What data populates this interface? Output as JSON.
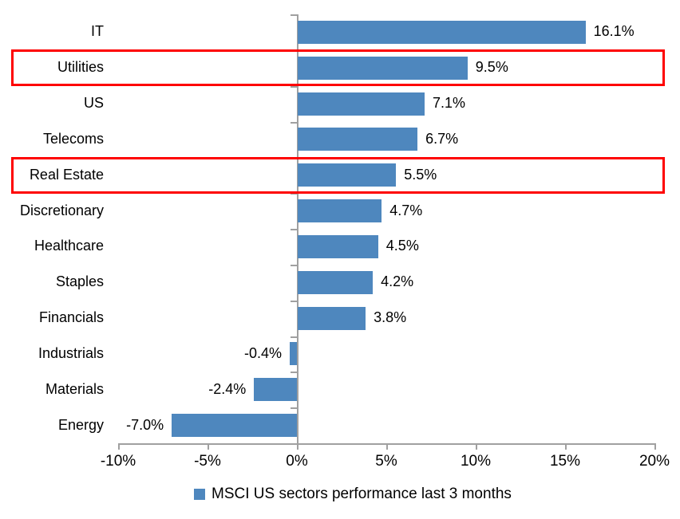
{
  "chart_data": {
    "type": "bar",
    "orientation": "horizontal",
    "categories": [
      "IT",
      "Utilities",
      "US",
      "Telecoms",
      "Real Estate",
      "Discretionary",
      "Healthcare",
      "Staples",
      "Financials",
      "Industrials",
      "Materials",
      "Energy"
    ],
    "values": [
      16.1,
      9.5,
      7.1,
      6.7,
      5.5,
      4.7,
      4.5,
      4.2,
      3.8,
      -0.4,
      -2.4,
      -7.0
    ],
    "data_labels": [
      "16.1%",
      "9.5%",
      "7.1%",
      "6.7%",
      "5.5%",
      "4.7%",
      "4.5%",
      "4.2%",
      "3.8%",
      "-0.4%",
      "-2.4%",
      "-7.0%"
    ],
    "highlighted_categories": [
      "Utilities",
      "Real Estate"
    ],
    "x_axis": {
      "min": -10,
      "max": 20,
      "step": 5,
      "tick_labels": [
        "-10%",
        "-5%",
        "0%",
        "5%",
        "10%",
        "15%",
        "20%"
      ]
    },
    "grid": "off",
    "legend": {
      "position": "bottom",
      "label": "MSCI US sectors performance last 3 months"
    },
    "colors": {
      "bar": "#4e87be",
      "highlight_box": "#fe0000",
      "axis": "#a0a0a0",
      "text": "#000000"
    }
  }
}
